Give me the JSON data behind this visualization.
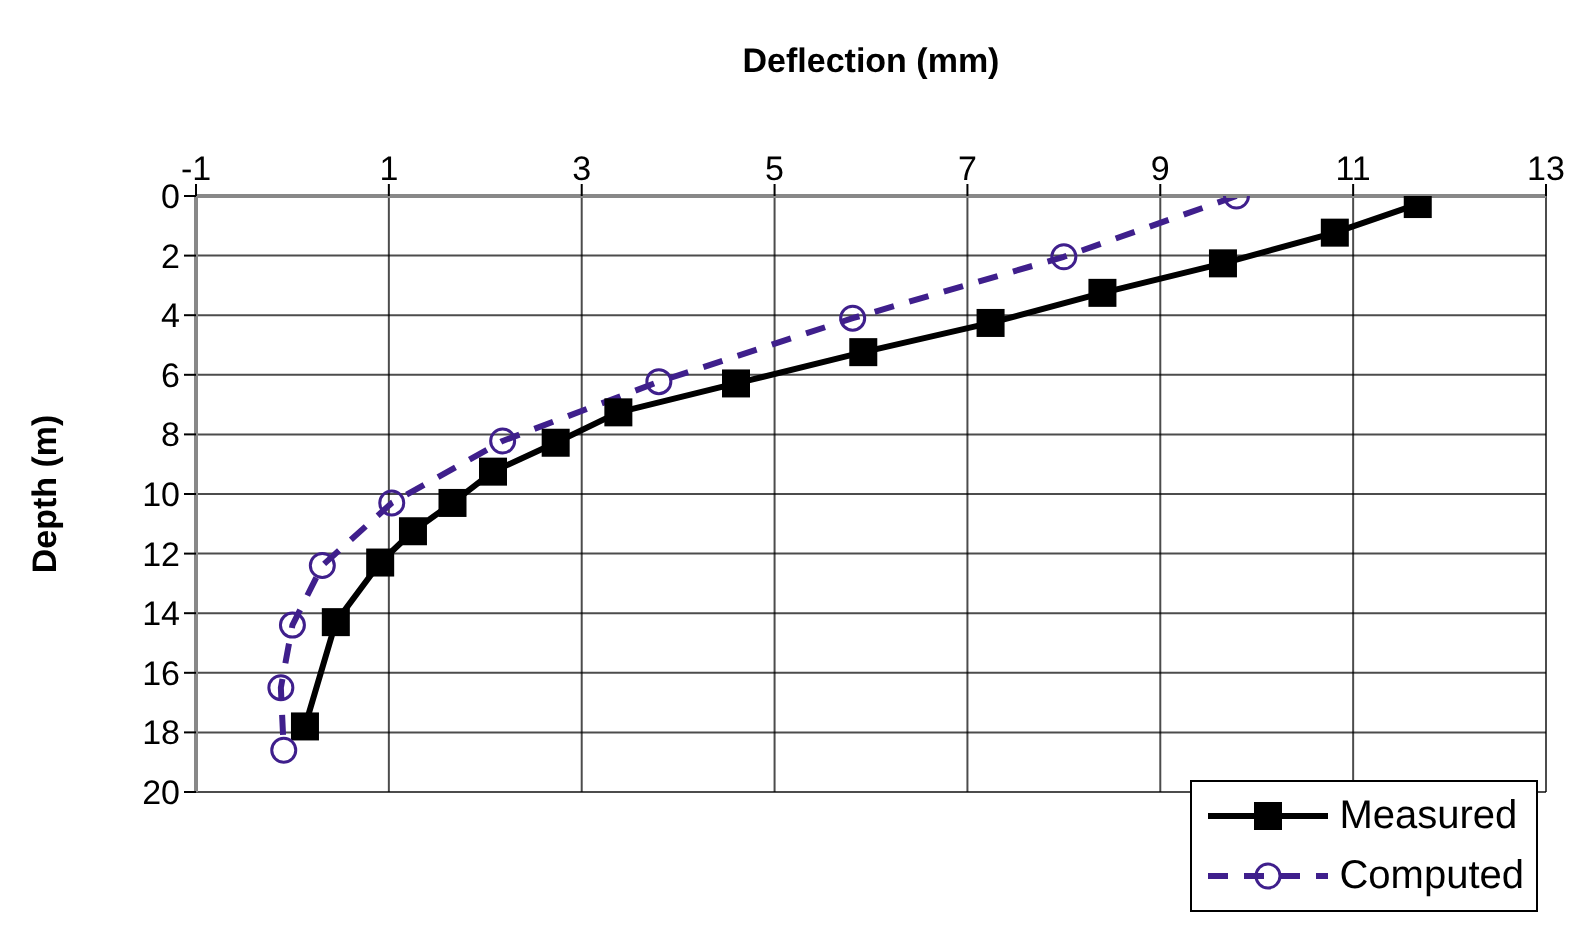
{
  "chart_data": {
    "type": "line",
    "xlabel": "Deflection (mm)",
    "ylabel": "Depth (m)",
    "xlim": [
      -1,
      13
    ],
    "xticks": [
      -1,
      1,
      3,
      5,
      7,
      9,
      11,
      13
    ],
    "ylim": [
      20,
      0
    ],
    "yticks": [
      0,
      2,
      4,
      6,
      8,
      10,
      12,
      14,
      16,
      18,
      20
    ],
    "grid": true,
    "legend": "bottom right",
    "series": [
      {
        "name": "Measured",
        "color": "#000000",
        "marker": "square",
        "line_style": "solid",
        "x": [
          11.67,
          10.81,
          9.65,
          8.4,
          7.24,
          5.92,
          4.6,
          3.38,
          2.73,
          2.08,
          1.66,
          1.25,
          0.91,
          0.45,
          0.13
        ],
        "values": [
          0.27,
          1.23,
          2.26,
          3.25,
          4.26,
          5.24,
          6.29,
          7.26,
          8.28,
          9.25,
          10.3,
          11.25,
          12.3,
          14.3,
          17.8
        ]
      },
      {
        "name": "Computed",
        "color": "#3f1f8c",
        "marker": "circle",
        "line_style": "dashed",
        "x": [
          9.79,
          8.0,
          5.81,
          3.8,
          2.18,
          1.03,
          0.31,
          0.0,
          -0.12,
          -0.09
        ],
        "values": [
          0.0,
          2.04,
          4.1,
          6.23,
          8.22,
          10.3,
          12.4,
          14.4,
          16.5,
          18.6
        ]
      }
    ]
  }
}
